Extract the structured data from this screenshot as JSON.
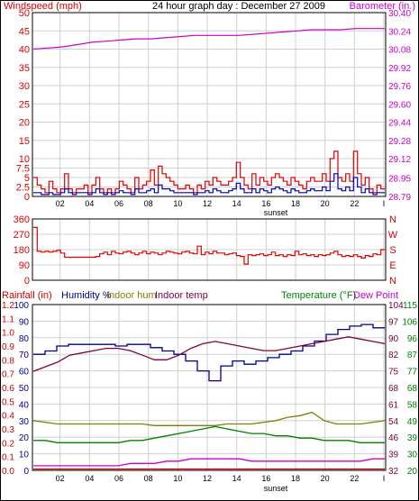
{
  "header": {
    "windspeed_label": "Windspeed (mph)",
    "title": "24 hour graph day : December 27 2009",
    "barometer_label": "Barometer (in.)"
  },
  "colors": {
    "background": "#ffffff",
    "frame": "#000000",
    "grid": "#cfcfcf",
    "wind_gust": "#dd0000",
    "wind_avg": "#0000bb",
    "barometer": "#cc00cc",
    "wind_dir": "#dd0000",
    "humidity": "#00008b",
    "temperature": "#008000",
    "dew_point": "#cc00cc",
    "indoor_hum": "#808000",
    "indoor_temp": "#800040",
    "rainfall": "#cc0000"
  },
  "chart_data": [
    {
      "id": "wind",
      "type": "line",
      "x_ticks": [
        "02",
        "04",
        "06",
        "08",
        "10",
        "12",
        "14",
        "16",
        "18",
        "20",
        "22",
        "I"
      ],
      "x_marker": "sunset",
      "grid": true,
      "left_axis": {
        "label": "Windspeed (mph)",
        "ticks": [
          "0",
          "2.5",
          "5",
          "7.5",
          "10",
          "15",
          "20",
          "25",
          "30",
          "35",
          "40",
          "45",
          "50"
        ]
      },
      "right_axis": {
        "label": "Barometer (in.)",
        "ticks": [
          "28.79",
          "28.95",
          "29.12",
          "29.28",
          "29.44",
          "29.60",
          "29.76",
          "29.92",
          "30.08",
          "30.24",
          "30.40"
        ]
      },
      "series": [
        {
          "key": "barometer",
          "axis": "right",
          "values": [
            30.08,
            30.09,
            30.1,
            30.12,
            30.14,
            30.15,
            30.16,
            30.17,
            30.17,
            30.18,
            30.19,
            30.2,
            30.2,
            30.2,
            30.2,
            30.21,
            30.22,
            30.23,
            30.24,
            30.25,
            30.25,
            30.25,
            30.26,
            30.26,
            30.26
          ]
        },
        {
          "key": "wind_gust",
          "axis": "left",
          "values": [
            5,
            3,
            2,
            1,
            4,
            2,
            1,
            2,
            6,
            2,
            1,
            2,
            2,
            3,
            1,
            3,
            5,
            2,
            1,
            2,
            1,
            2,
            4,
            3,
            2,
            1,
            5,
            2,
            3,
            4,
            7,
            3,
            8,
            6,
            5,
            4,
            3,
            2,
            2,
            3,
            2,
            1,
            3,
            2,
            4,
            3,
            5,
            4,
            3,
            3,
            4,
            5,
            9,
            5,
            3,
            2,
            6,
            3,
            5,
            4,
            3,
            5,
            6,
            5,
            4,
            3,
            5,
            4,
            3,
            2,
            4,
            5,
            4,
            4,
            6,
            4,
            10,
            12,
            5,
            4,
            6,
            4,
            12,
            6,
            3,
            5,
            2,
            1,
            3,
            2
          ]
        },
        {
          "key": "wind_avg",
          "axis": "left",
          "values": [
            1,
            1,
            0.5,
            0.5,
            1,
            0.5,
            0.5,
            1,
            2,
            1,
            0.5,
            1,
            1,
            1,
            0.5,
            1,
            2,
            1,
            0.5,
            1,
            0.5,
            1,
            1.5,
            1,
            1,
            0.5,
            2,
            1,
            1,
            1.5,
            2,
            1,
            3,
            2,
            2,
            1.5,
            1,
            1,
            1,
            1,
            1,
            0.5,
            1,
            1,
            1.5,
            1,
            2,
            1.5,
            1,
            1,
            1.5,
            2,
            3.5,
            2,
            1,
            1,
            2,
            1,
            2,
            1.5,
            1,
            2,
            2.5,
            2,
            1.5,
            1,
            2,
            1.5,
            1,
            1,
            1.5,
            2,
            1.5,
            1.5,
            2.5,
            1.5,
            4,
            6,
            2,
            1.5,
            2.5,
            1.5,
            5,
            2.5,
            1,
            2,
            1,
            0.5,
            1,
            1
          ]
        }
      ]
    },
    {
      "id": "wind_direction",
      "type": "line",
      "x_ticks": [
        "02",
        "04",
        "06",
        "08",
        "10",
        "12",
        "14",
        "16",
        "18",
        "20",
        "22",
        "I"
      ],
      "grid": true,
      "left_axis": {
        "ticks": [
          "0",
          "90",
          "180",
          "270",
          "360"
        ]
      },
      "right_axis": {
        "ticks": [
          "N",
          "E",
          "S",
          "W",
          "N"
        ]
      },
      "series": [
        {
          "key": "wind_dir",
          "axis": "left",
          "values": [
            310,
            170,
            165,
            170,
            165,
            170,
            175,
            160,
            135,
            135,
            135,
            135,
            135,
            135,
            135,
            135,
            140,
            155,
            165,
            150,
            170,
            160,
            155,
            165,
            170,
            160,
            150,
            160,
            170,
            155,
            165,
            160,
            150,
            160,
            170,
            165,
            160,
            155,
            165,
            170,
            160,
            155,
            200,
            150,
            165,
            155,
            170,
            160,
            160,
            150,
            155,
            160,
            145,
            140,
            95,
            150,
            145,
            150,
            155,
            145,
            150,
            165,
            145,
            150,
            140,
            150,
            145,
            170,
            150,
            155,
            145,
            150,
            140,
            150,
            145,
            150,
            160,
            170,
            150,
            140,
            145,
            140,
            150,
            140,
            130,
            145,
            140,
            155,
            150,
            180
          ]
        }
      ]
    },
    {
      "id": "temperature_humidity",
      "type": "line",
      "x_ticks": [
        "02",
        "04",
        "06",
        "08",
        "10",
        "12",
        "14",
        "16",
        "18",
        "20",
        "22",
        "I"
      ],
      "x_marker": "sunset",
      "grid": true,
      "header": {
        "rainfall_label": "Rainfall (in)",
        "humidity_label": "Humidity %",
        "indoor_hum_label": "Indoor hum",
        "indoor_temp_label": "Indoor temp",
        "temperature_label": "Temperature (°F)",
        "dew_point_label": "Dew Point"
      },
      "rainfall_axis": {
        "ticks": [
          "0.0",
          "0.1",
          "0.2",
          "0.3",
          "0.4",
          "0.5",
          "0.6",
          "0.7",
          "0.8",
          "0.9",
          "1.0",
          "1.1",
          "1.2"
        ]
      },
      "humidity_axis": {
        "ticks": [
          "0",
          "10",
          "20",
          "30",
          "40",
          "50",
          "60",
          "70",
          "80",
          "90",
          "100"
        ]
      },
      "temperature_axis_inner": {
        "ticks": [
          "32",
          "39",
          "46",
          "54",
          "61",
          "68",
          "75",
          "82",
          "90",
          "97",
          "104"
        ]
      },
      "temperature_axis_outer": {
        "ticks": [
          "20",
          "30",
          "39",
          "49",
          "58",
          "68",
          "77",
          "87",
          "96",
          "106",
          "115"
        ]
      },
      "series": [
        {
          "key": "humidity",
          "axis": "humidity",
          "values": [
            70,
            72,
            75,
            76,
            76,
            76,
            76,
            75,
            76,
            76,
            74,
            72,
            70,
            66,
            60,
            54,
            63,
            66,
            64,
            66,
            68,
            70,
            72,
            75,
            78,
            82,
            85,
            87,
            88,
            86
          ]
        },
        {
          "key": "indoor_temp",
          "axis": "temp_inner",
          "values": [
            75,
            77,
            79,
            82,
            83,
            84,
            85,
            85,
            84,
            82,
            80,
            80,
            82,
            85,
            87,
            88,
            87,
            86,
            85,
            84,
            84,
            85,
            86,
            87,
            88,
            89,
            90,
            89,
            88,
            87
          ]
        },
        {
          "key": "indoor_hum",
          "axis": "humidity",
          "values": [
            30,
            29,
            28,
            28,
            28,
            28,
            28,
            28,
            28,
            28,
            27,
            27,
            27,
            27,
            27,
            27,
            28,
            28,
            28,
            29,
            30,
            32,
            33,
            35,
            30,
            28,
            28,
            28,
            29,
            30
          ]
        },
        {
          "key": "temperature",
          "axis": "temp_inner",
          "values": [
            45,
            45,
            44,
            44,
            44,
            44,
            44,
            44,
            45,
            45,
            46,
            47,
            48,
            49,
            50,
            51,
            50,
            49,
            48,
            48,
            47,
            47,
            46,
            46,
            45,
            45,
            45,
            44,
            44,
            44
          ]
        },
        {
          "key": "dew_point",
          "axis": "temp_inner",
          "values": [
            34,
            34,
            34,
            34,
            34,
            34,
            34,
            34,
            35,
            35,
            35,
            36,
            36,
            37,
            37,
            37,
            37,
            37,
            36,
            36,
            36,
            36,
            36,
            36,
            36,
            36,
            36,
            36,
            37,
            37
          ]
        },
        {
          "key": "rainfall",
          "axis": "rainfall",
          "values": [
            0.01,
            0.01,
            0.01,
            0.01,
            0.01,
            0.01,
            0.01,
            0.01,
            0.01,
            0.01,
            0.01,
            0.01,
            0.01,
            0.01,
            0.01,
            0.01,
            0.01,
            0.01,
            0.01,
            0.01,
            0.01,
            0.01,
            0.01,
            0.01,
            0.01,
            0.01,
            0.01,
            0.01,
            0.01,
            0.01
          ]
        }
      ]
    }
  ]
}
